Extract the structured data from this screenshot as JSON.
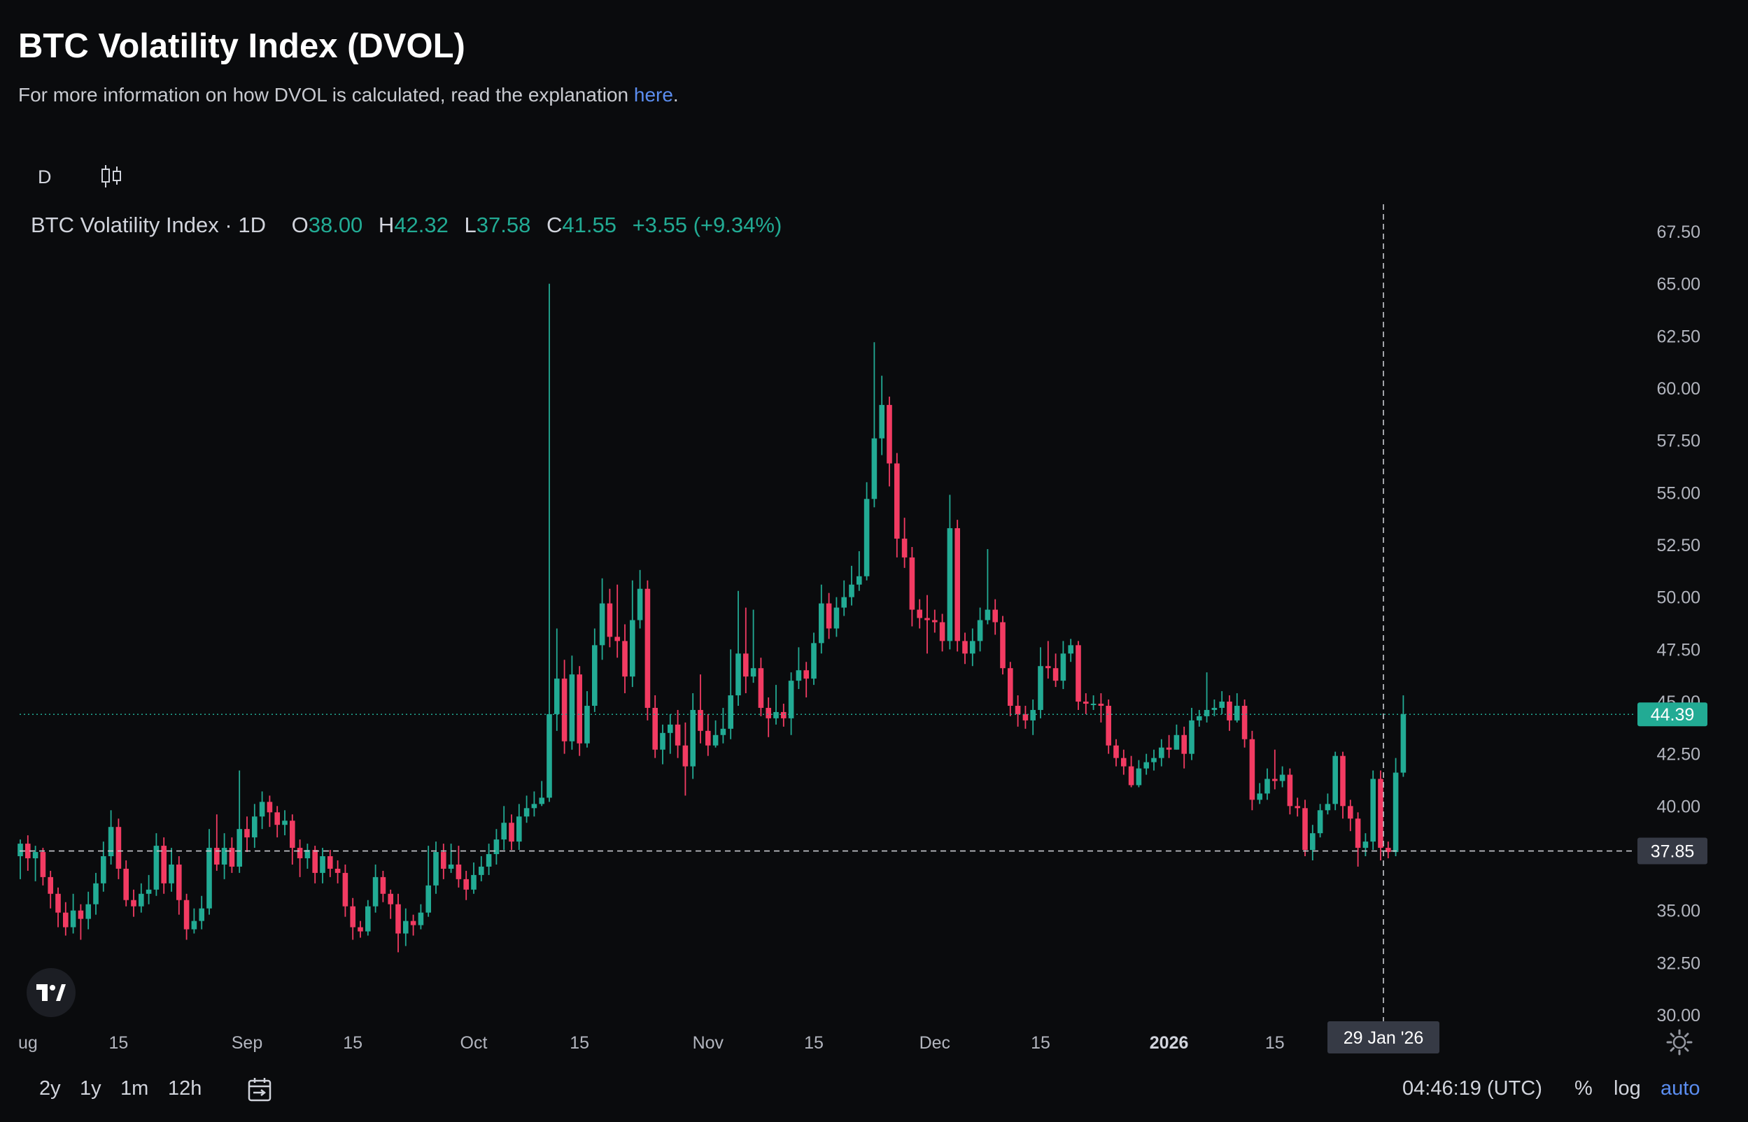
{
  "header": {
    "title": "BTC Volatility Index (DVOL)",
    "subtitle_prefix": "For more information on how DVOL is calculated, read the explanation ",
    "subtitle_link": "here",
    "subtitle_suffix": "."
  },
  "toolbar": {
    "interval": "D",
    "chart_type_icon": "candlestick-icon"
  },
  "legend": {
    "symbol": "BTC Volatility Index · 1D",
    "o_label": "O",
    "o_value": "38.00",
    "h_label": "H",
    "h_value": "42.32",
    "l_label": "L",
    "l_value": "37.58",
    "c_label": "C",
    "c_value": "41.55",
    "change": "+3.55 (+9.34%)"
  },
  "colors": {
    "up": "#22ab94",
    "down": "#f23b62",
    "background": "#0a0b0d",
    "accent": "#5b8def"
  },
  "price_labels": {
    "last": "44.39",
    "crosshair": "37.85"
  },
  "crosshair_time": "29 Jan '26",
  "bottom_bar": {
    "ranges": [
      "2y",
      "1y",
      "1m",
      "12h"
    ],
    "time": "04:46:19 (UTC)",
    "percent": "%",
    "log": "log",
    "auto": "auto"
  },
  "chart_data": {
    "type": "candlestick",
    "ylim": [
      29,
      68.5
    ],
    "y_ticks": [
      "67.50",
      "65.00",
      "62.50",
      "60.00",
      "57.50",
      "55.00",
      "52.50",
      "50.00",
      "47.50",
      "45.00",
      "42.50",
      "40.00",
      "35.00",
      "32.50",
      "30.00"
    ],
    "x_ticks": [
      {
        "label": "ug",
        "day": 0,
        "bold": false
      },
      {
        "label": "15",
        "day": 13,
        "bold": false
      },
      {
        "label": "Sep",
        "day": 30,
        "bold": false
      },
      {
        "label": "15",
        "day": 44,
        "bold": false
      },
      {
        "label": "Oct",
        "day": 60,
        "bold": false
      },
      {
        "label": "15",
        "day": 74,
        "bold": false
      },
      {
        "label": "Nov",
        "day": 91,
        "bold": false
      },
      {
        "label": "15",
        "day": 105,
        "bold": false
      },
      {
        "label": "Dec",
        "day": 121,
        "bold": false
      },
      {
        "label": "15",
        "day": 135,
        "bold": false
      },
      {
        "label": "2026",
        "day": 152,
        "bold": true
      },
      {
        "label": "15",
        "day": 166,
        "bold": false
      },
      {
        "label": "29 Jan '26",
        "day": 180,
        "bold": false
      }
    ],
    "last_price": 44.39,
    "crosshair_price": 37.85,
    "crosshair_day": 180,
    "candles": [
      [
        37.6,
        38.2,
        38.4,
        36.5
      ],
      [
        38.2,
        37.5,
        38.6,
        36.9
      ],
      [
        37.5,
        37.8,
        38.1,
        36.4
      ],
      [
        37.8,
        36.6,
        38.0,
        36.2
      ],
      [
        36.6,
        35.8,
        36.9,
        35.1
      ],
      [
        35.8,
        34.9,
        36.1,
        34.2
      ],
      [
        34.9,
        34.2,
        35.4,
        33.8
      ],
      [
        34.2,
        35.0,
        35.8,
        33.9
      ],
      [
        35.0,
        34.6,
        35.3,
        33.6
      ],
      [
        34.6,
        35.3,
        35.9,
        34.1
      ],
      [
        35.3,
        36.3,
        36.8,
        34.8
      ],
      [
        36.3,
        37.6,
        38.3,
        35.9
      ],
      [
        37.6,
        39.0,
        39.8,
        37.2
      ],
      [
        39.0,
        37.0,
        39.4,
        36.5
      ],
      [
        37.0,
        35.5,
        37.4,
        35.2
      ],
      [
        35.5,
        35.2,
        36.0,
        34.7
      ],
      [
        35.2,
        35.8,
        36.3,
        34.9
      ],
      [
        35.8,
        36.0,
        36.7,
        35.3
      ],
      [
        36.0,
        38.1,
        38.7,
        35.7
      ],
      [
        38.1,
        36.3,
        38.5,
        35.8
      ],
      [
        36.3,
        37.2,
        38.0,
        35.9
      ],
      [
        37.2,
        35.5,
        37.6,
        34.8
      ],
      [
        35.5,
        34.1,
        35.8,
        33.6
      ],
      [
        34.1,
        34.5,
        35.1,
        33.9
      ],
      [
        34.5,
        35.1,
        35.7,
        34.1
      ],
      [
        35.1,
        38.0,
        38.9,
        34.8
      ],
      [
        38.0,
        37.2,
        39.6,
        36.9
      ],
      [
        37.2,
        38.0,
        38.7,
        36.5
      ],
      [
        38.0,
        37.1,
        38.5,
        36.8
      ],
      [
        37.1,
        38.9,
        41.7,
        36.8
      ],
      [
        38.9,
        38.5,
        39.5,
        37.8
      ],
      [
        38.5,
        39.5,
        40.1,
        38.0
      ],
      [
        39.5,
        40.2,
        40.7,
        38.9
      ],
      [
        40.2,
        39.7,
        40.5,
        39.0
      ],
      [
        39.7,
        39.1,
        40.0,
        38.5
      ],
      [
        39.1,
        39.3,
        39.8,
        38.6
      ],
      [
        39.3,
        38.0,
        39.6,
        37.2
      ],
      [
        38.0,
        37.5,
        38.4,
        36.6
      ],
      [
        37.5,
        37.9,
        38.2,
        37.0
      ],
      [
        37.9,
        36.8,
        38.1,
        36.3
      ],
      [
        36.8,
        37.6,
        38.0,
        36.3
      ],
      [
        37.6,
        37.0,
        37.9,
        36.6
      ],
      [
        37.0,
        36.8,
        37.4,
        36.3
      ],
      [
        36.8,
        35.2,
        37.2,
        34.7
      ],
      [
        35.2,
        34.2,
        35.6,
        33.6
      ],
      [
        34.2,
        34.0,
        34.5,
        33.7
      ],
      [
        34.0,
        35.2,
        35.5,
        33.8
      ],
      [
        35.2,
        36.6,
        37.2,
        34.9
      ],
      [
        36.6,
        35.8,
        36.9,
        35.4
      ],
      [
        35.8,
        35.3,
        36.0,
        34.6
      ],
      [
        35.3,
        33.9,
        35.8,
        33.0
      ],
      [
        33.9,
        34.5,
        35.1,
        33.3
      ],
      [
        34.5,
        34.3,
        34.8,
        33.8
      ],
      [
        34.3,
        34.9,
        35.3,
        34.1
      ],
      [
        34.9,
        36.2,
        38.1,
        34.7
      ],
      [
        36.2,
        37.8,
        38.3,
        35.8
      ],
      [
        37.8,
        37.0,
        38.2,
        36.5
      ],
      [
        37.0,
        37.2,
        38.2,
        36.8
      ],
      [
        37.2,
        36.5,
        38.1,
        36.1
      ],
      [
        36.5,
        36.0,
        36.9,
        35.5
      ],
      [
        36.0,
        36.7,
        37.3,
        35.8
      ],
      [
        36.7,
        37.1,
        37.6,
        36.4
      ],
      [
        37.1,
        37.7,
        38.2,
        36.7
      ],
      [
        37.7,
        38.4,
        38.9,
        37.2
      ],
      [
        38.4,
        39.2,
        40.0,
        37.9
      ],
      [
        39.2,
        38.3,
        39.6,
        37.9
      ],
      [
        38.3,
        39.5,
        40.1,
        37.9
      ],
      [
        39.5,
        39.9,
        40.5,
        39.2
      ],
      [
        39.9,
        40.1,
        40.7,
        39.5
      ],
      [
        40.1,
        40.4,
        41.2,
        40.0
      ],
      [
        40.4,
        44.4,
        65.0,
        40.2
      ],
      [
        44.4,
        46.1,
        48.5,
        43.6
      ],
      [
        46.1,
        43.1,
        47.0,
        42.5
      ],
      [
        43.1,
        46.3,
        47.2,
        42.7
      ],
      [
        46.3,
        43.0,
        46.7,
        42.4
      ],
      [
        43.0,
        44.8,
        45.5,
        42.8
      ],
      [
        44.8,
        47.7,
        48.5,
        44.5
      ],
      [
        47.7,
        49.7,
        50.9,
        47.0
      ],
      [
        49.7,
        48.1,
        50.4,
        47.6
      ],
      [
        48.1,
        47.9,
        50.6,
        47.1
      ],
      [
        47.9,
        46.2,
        48.7,
        45.4
      ],
      [
        46.2,
        48.9,
        50.8,
        45.7
      ],
      [
        48.9,
        50.4,
        51.3,
        48.5
      ],
      [
        50.4,
        44.7,
        50.8,
        44.1
      ],
      [
        44.7,
        42.7,
        45.3,
        42.3
      ],
      [
        42.7,
        43.5,
        43.9,
        42.0
      ],
      [
        43.5,
        43.9,
        44.4,
        42.5
      ],
      [
        43.9,
        42.9,
        44.6,
        42.3
      ],
      [
        42.9,
        41.9,
        44.0,
        40.5
      ],
      [
        41.9,
        44.6,
        45.4,
        41.3
      ],
      [
        44.6,
        43.6,
        46.3,
        43.0
      ],
      [
        43.6,
        42.9,
        44.4,
        42.4
      ],
      [
        42.9,
        43.4,
        44.1,
        42.8
      ],
      [
        43.4,
        43.7,
        44.7,
        43.0
      ],
      [
        43.7,
        45.3,
        47.5,
        43.2
      ],
      [
        45.3,
        47.3,
        50.3,
        44.8
      ],
      [
        47.3,
        46.2,
        49.5,
        45.4
      ],
      [
        46.2,
        46.6,
        49.4,
        45.9
      ],
      [
        46.6,
        44.7,
        47.1,
        44.3
      ],
      [
        44.7,
        44.2,
        45.2,
        43.3
      ],
      [
        44.2,
        44.5,
        45.8,
        43.9
      ],
      [
        44.5,
        44.2,
        44.9,
        43.8
      ],
      [
        44.2,
        46.0,
        46.4,
        43.4
      ],
      [
        46.0,
        46.5,
        47.6,
        45.6
      ],
      [
        46.5,
        46.1,
        46.9,
        45.2
      ],
      [
        46.1,
        47.8,
        48.3,
        45.8
      ],
      [
        47.8,
        49.7,
        50.6,
        47.3
      ],
      [
        49.7,
        48.5,
        50.2,
        48.0
      ],
      [
        48.5,
        49.5,
        50.0,
        48.1
      ],
      [
        49.5,
        50.0,
        50.8,
        49.1
      ],
      [
        50.0,
        50.6,
        51.5,
        49.6
      ],
      [
        50.6,
        51.0,
        52.2,
        50.3
      ],
      [
        51.0,
        54.7,
        55.5,
        50.8
      ],
      [
        54.7,
        57.6,
        62.2,
        54.3
      ],
      [
        57.6,
        59.2,
        60.6,
        56.8
      ],
      [
        59.2,
        56.4,
        59.6,
        55.3
      ],
      [
        56.4,
        52.8,
        56.9,
        51.9
      ],
      [
        52.8,
        51.9,
        53.8,
        51.4
      ],
      [
        51.9,
        49.4,
        52.4,
        48.6
      ],
      [
        49.4,
        49.0,
        49.9,
        48.5
      ],
      [
        49.0,
        48.9,
        50.1,
        47.3
      ],
      [
        48.9,
        48.8,
        49.4,
        48.3
      ],
      [
        48.8,
        47.9,
        49.2,
        47.4
      ],
      [
        47.9,
        53.3,
        54.9,
        47.5
      ],
      [
        53.3,
        47.9,
        53.7,
        47.4
      ],
      [
        47.9,
        47.3,
        48.3,
        46.8
      ],
      [
        47.3,
        47.9,
        48.5,
        46.7
      ],
      [
        47.9,
        48.9,
        49.5,
        47.4
      ],
      [
        48.9,
        49.4,
        52.3,
        48.7
      ],
      [
        49.4,
        48.8,
        49.9,
        48.2
      ],
      [
        48.8,
        46.6,
        49.1,
        46.3
      ],
      [
        46.6,
        44.8,
        46.9,
        44.3
      ],
      [
        44.8,
        44.4,
        45.3,
        43.8
      ],
      [
        44.4,
        44.1,
        44.8,
        43.7
      ],
      [
        44.1,
        44.6,
        45.1,
        43.4
      ],
      [
        44.6,
        46.7,
        47.6,
        44.2
      ],
      [
        46.7,
        46.6,
        47.9,
        46.1
      ],
      [
        46.6,
        46.0,
        47.3,
        45.7
      ],
      [
        46.0,
        47.3,
        47.9,
        45.6
      ],
      [
        47.3,
        47.7,
        48.0,
        46.9
      ],
      [
        47.7,
        45.0,
        47.9,
        44.6
      ],
      [
        45.0,
        44.9,
        45.4,
        44.4
      ],
      [
        44.9,
        44.9,
        45.3,
        44.6
      ],
      [
        44.9,
        44.8,
        45.4,
        44.0
      ],
      [
        44.8,
        42.9,
        45.1,
        42.5
      ],
      [
        42.9,
        42.3,
        43.2,
        41.9
      ],
      [
        42.3,
        41.9,
        42.7,
        41.5
      ],
      [
        41.9,
        41.0,
        42.4,
        40.9
      ],
      [
        41.0,
        41.8,
        42.2,
        40.9
      ],
      [
        41.8,
        42.1,
        42.5,
        41.5
      ],
      [
        42.1,
        42.3,
        42.7,
        41.7
      ],
      [
        42.3,
        42.8,
        43.2,
        41.9
      ],
      [
        42.8,
        42.7,
        43.4,
        42.3
      ],
      [
        42.7,
        43.4,
        43.9,
        42.7
      ],
      [
        43.4,
        42.5,
        43.8,
        41.8
      ],
      [
        42.5,
        44.1,
        44.7,
        42.2
      ],
      [
        44.1,
        44.3,
        44.6,
        43.8
      ],
      [
        44.3,
        44.6,
        46.4,
        44.0
      ],
      [
        44.6,
        44.7,
        45.1,
        44.3
      ],
      [
        44.7,
        45.0,
        45.5,
        44.4
      ],
      [
        45.0,
        44.1,
        45.3,
        43.6
      ],
      [
        44.1,
        44.8,
        45.4,
        44.0
      ],
      [
        44.8,
        43.2,
        45.1,
        42.8
      ],
      [
        43.2,
        40.3,
        43.6,
        39.8
      ],
      [
        40.3,
        40.6,
        41.1,
        40.1
      ],
      [
        40.6,
        41.3,
        41.8,
        40.3
      ],
      [
        41.3,
        41.2,
        42.7,
        40.8
      ],
      [
        41.2,
        41.5,
        41.9,
        40.9
      ],
      [
        41.5,
        40.0,
        41.8,
        39.6
      ],
      [
        40.0,
        39.9,
        40.4,
        39.5
      ],
      [
        39.9,
        37.9,
        40.3,
        37.6
      ],
      [
        37.9,
        38.7,
        39.1,
        37.4
      ],
      [
        38.7,
        39.8,
        40.1,
        38.5
      ],
      [
        39.8,
        40.1,
        40.6,
        39.6
      ],
      [
        40.1,
        42.4,
        42.6,
        39.8
      ],
      [
        42.4,
        40.0,
        42.6,
        39.4
      ],
      [
        40.0,
        39.4,
        40.3,
        38.8
      ],
      [
        39.4,
        38.0,
        39.7,
        37.1
      ],
      [
        38.0,
        38.3,
        38.7,
        37.6
      ],
      [
        38.3,
        41.3,
        41.7,
        37.9
      ],
      [
        41.3,
        38.0,
        41.7,
        37.4
      ],
      [
        38.0,
        37.8,
        38.3,
        37.5
      ],
      [
        37.8,
        41.6,
        42.3,
        37.6
      ],
      [
        41.6,
        44.4,
        45.3,
        41.4
      ]
    ]
  }
}
